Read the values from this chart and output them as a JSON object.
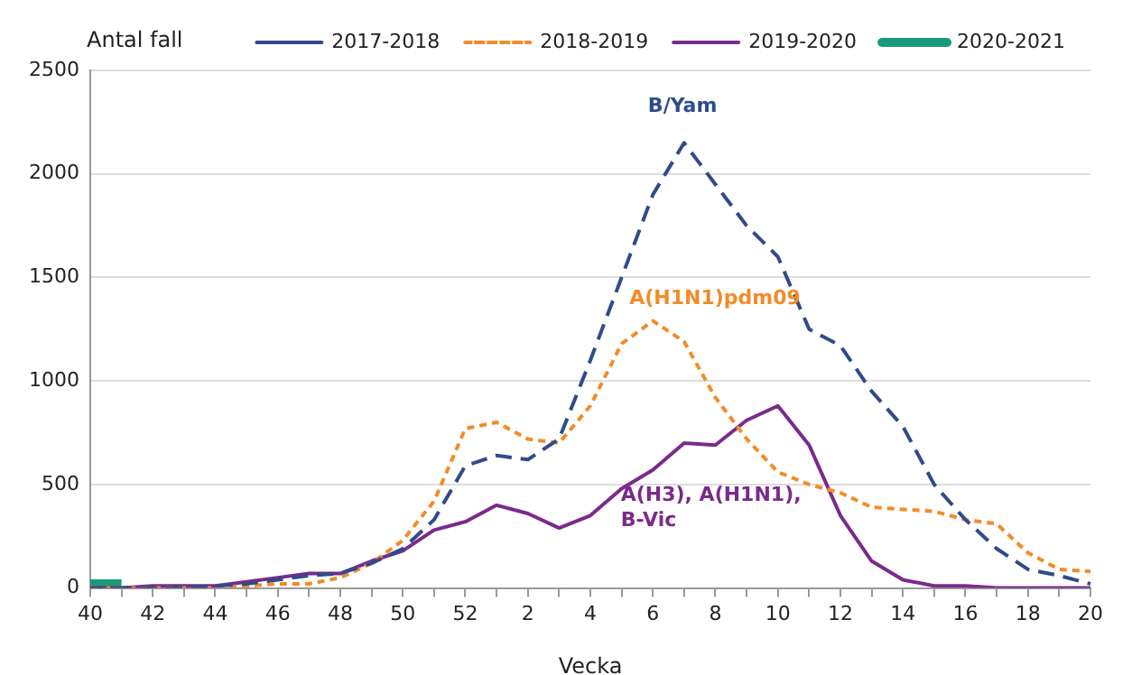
{
  "chart_data": {
    "type": "line",
    "xlabel": "Vecka",
    "ylabel": "Antal fall",
    "categories": [
      "40",
      null,
      "42",
      null,
      "44",
      null,
      "46",
      null,
      "48",
      null,
      "50",
      null,
      "52",
      null,
      "2",
      null,
      "4",
      null,
      "6",
      null,
      "8",
      null,
      "10",
      null,
      "12",
      null,
      "14",
      null,
      "16",
      null,
      "18",
      null,
      "20"
    ],
    "series": [
      {
        "name": "2017-2018",
        "color": "#2f4b8a",
        "line_style": "dashed",
        "values": [
          0,
          0,
          0,
          0,
          10,
          20,
          40,
          60,
          70,
          120,
          190,
          330,
          590,
          640,
          620,
          720,
          1100,
          1500,
          1900,
          2150,
          1950,
          1750,
          1600,
          1250,
          1170,
          950,
          780,
          500,
          330,
          190,
          90,
          60,
          20
        ]
      },
      {
        "name": "2018-2019",
        "color": "#f28c28",
        "line_style": "dotted",
        "values": [
          0,
          0,
          0,
          0,
          0,
          10,
          20,
          20,
          50,
          120,
          230,
          420,
          770,
          800,
          720,
          700,
          880,
          1180,
          1290,
          1190,
          920,
          720,
          560,
          500,
          460,
          390,
          380,
          370,
          330,
          310,
          170,
          90,
          80
        ]
      },
      {
        "name": "2019-2020",
        "color": "#7b2a8b",
        "line_style": "solid",
        "values": [
          0,
          0,
          10,
          10,
          10,
          30,
          50,
          70,
          70,
          130,
          180,
          280,
          320,
          400,
          360,
          290,
          350,
          480,
          570,
          700,
          690,
          810,
          880,
          690,
          350,
          130,
          40,
          10,
          10,
          0,
          0,
          0,
          0
        ]
      },
      {
        "name": "2020-2021",
        "color": "#1a9a7a",
        "line_style": "solid",
        "values": [
          20,
          20,
          null,
          null,
          null,
          null,
          null,
          null,
          null,
          null,
          null,
          null,
          null,
          null,
          null,
          null,
          null,
          null,
          null,
          null,
          null,
          null,
          null,
          null,
          null,
          null,
          null,
          null,
          null,
          null,
          null,
          null,
          null
        ]
      }
    ],
    "annotations": [
      "B/Yam",
      "A(H1N1)pdm09",
      "A(H3), A(H1N1),\nB-Vic"
    ],
    "ylim": [
      0,
      2500
    ],
    "yticks": [
      0,
      500,
      1000,
      1500,
      2000,
      2500
    ],
    "grid": "y",
    "legend": "top right",
    "marker": "none"
  }
}
